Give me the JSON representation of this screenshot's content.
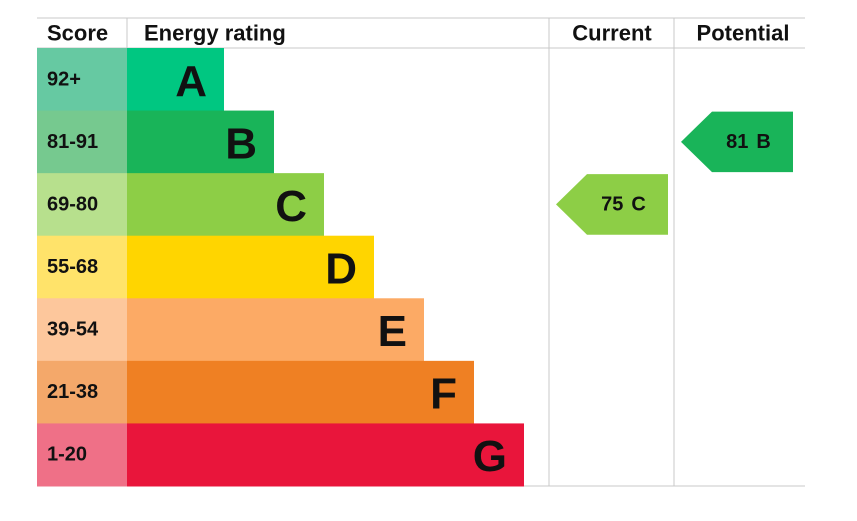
{
  "header": {
    "score": "Score",
    "energy_rating": "Energy rating",
    "current": "Current",
    "potential": "Potential"
  },
  "bands": [
    {
      "score": "92+",
      "letter": "A",
      "color": "#00c781",
      "score_color": "#66c9a2"
    },
    {
      "score": "81-91",
      "letter": "B",
      "color": "#19b459",
      "score_color": "#76c98f"
    },
    {
      "score": "69-80",
      "letter": "C",
      "color": "#8dce46",
      "score_color": "#b7e08d"
    },
    {
      "score": "55-68",
      "letter": "D",
      "color": "#ffd500",
      "score_color": "#ffe36a"
    },
    {
      "score": "39-54",
      "letter": "E",
      "color": "#fcaa65",
      "score_color": "#fdc79c"
    },
    {
      "score": "21-38",
      "letter": "F",
      "color": "#ef8023",
      "score_color": "#f4a86a"
    },
    {
      "score": "1-20",
      "letter": "G",
      "color": "#e9153b",
      "score_color": "#ef7087"
    }
  ],
  "current": {
    "value": 75,
    "letter": "C"
  },
  "potential": {
    "value": 81,
    "letter": "B"
  }
}
